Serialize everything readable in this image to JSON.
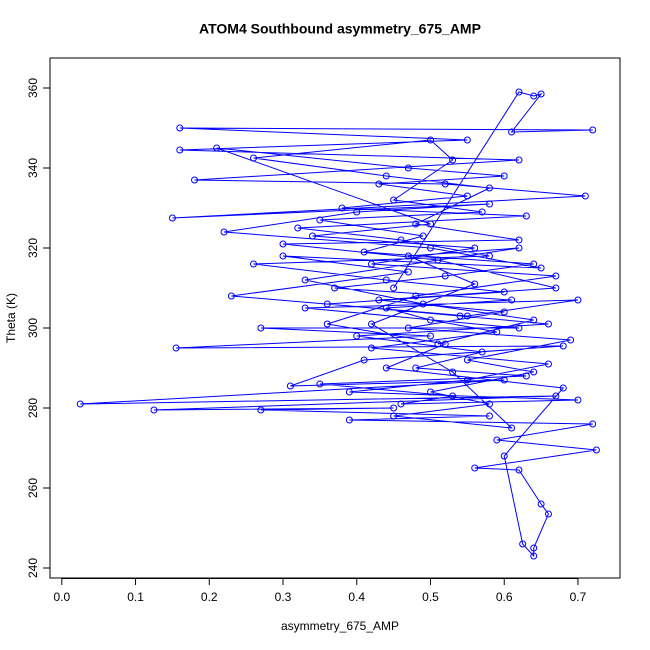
{
  "chart_data": {
    "type": "line",
    "title": "ATOM4 Southbound asymmetry_675_AMP",
    "x_label": "asymmetry_675_AMP",
    "y_label": "Theta (K)",
    "color": "#0000ff",
    "markers": true,
    "x": [
      0.45,
      0.62,
      0.64,
      0.65,
      0.61,
      0.72,
      0.16,
      0.55,
      0.16,
      0.62,
      0.18,
      0.52,
      0.71,
      0.15,
      0.58,
      0.4,
      0.22,
      0.5,
      0.65,
      0.3,
      0.47,
      0.23,
      0.55,
      0.7,
      0.33,
      0.62,
      0.27,
      0.5,
      0.155,
      0.68,
      0.41,
      0.31,
      0.6,
      0.025,
      0.67,
      0.125,
      0.45,
      0.27,
      0.58,
      0.39,
      0.72,
      0.59,
      0.725,
      0.56,
      0.62,
      0.65,
      0.66,
      0.64,
      0.64,
      0.625,
      0.6,
      0.68,
      0.44,
      0.52,
      0.36,
      0.48,
      0.67,
      0.42,
      0.56,
      0.34,
      0.5,
      0.21,
      0.47,
      0.6,
      0.43,
      0.55,
      0.38,
      0.63,
      0.32,
      0.46,
      0.58,
      0.26,
      0.44,
      0.6,
      0.36,
      0.54,
      0.66,
      0.4,
      0.57,
      0.48,
      0.63,
      0.35,
      0.53,
      0.46,
      0.7,
      0.39,
      0.55,
      0.66,
      0.42,
      0.59,
      0.5,
      0.44,
      0.61,
      0.37,
      0.52,
      0.64,
      0.41,
      0.49,
      0.35,
      0.57,
      0.45,
      0.53,
      0.5,
      0.26,
      0.44,
      0.58,
      0.48,
      0.62,
      0.3,
      0.51,
      0.67,
      0.43,
      0.6,
      0.47,
      0.69,
      0.55,
      0.64,
      0.5,
      0.58,
      0.45,
      0.61,
      0.53,
      0.42,
      0.56,
      0.47,
      0.62,
      0.33,
      0.49,
      0.64,
      0.51
    ],
    "values": [
      310,
      359,
      358,
      358.5,
      349,
      349.5,
      350,
      347,
      344.5,
      342,
      337,
      336,
      333,
      327.5,
      331,
      329,
      324,
      320,
      315,
      318,
      314,
      308,
      303,
      307,
      305,
      300,
      300,
      298,
      295,
      295.5,
      292,
      285.5,
      287,
      281,
      283,
      279.5,
      280,
      279.5,
      278,
      277,
      276,
      272,
      269.5,
      265,
      264.5,
      256,
      253.5,
      245,
      243,
      246,
      268,
      285,
      290,
      296,
      301,
      308,
      313,
      316,
      320,
      323,
      326,
      345,
      340,
      338,
      336,
      333,
      330,
      328,
      325,
      322,
      318,
      316,
      312,
      309,
      306,
      303,
      301,
      298,
      294,
      290,
      288,
      286,
      283,
      281,
      282,
      284,
      287,
      291,
      295,
      299,
      302,
      305,
      307,
      310,
      313,
      316,
      319,
      323,
      327,
      329,
      332,
      342,
      347,
      342.5,
      338,
      335,
      326,
      322,
      321,
      317,
      310,
      307,
      304,
      300,
      297,
      292,
      289,
      284,
      281,
      278,
      275,
      289,
      301,
      311,
      318,
      320,
      312,
      306,
      302,
      296
    ],
    "xlim": [
      -0.016,
      0.757
    ],
    "ylim": [
      237.5,
      367.5
    ],
    "xticks": [
      {
        "value": 0,
        "label": "0.0"
      },
      0.1,
      0.2,
      0.3,
      0.4,
      0.5,
      0.6,
      0.7
    ],
    "yticks": [
      240,
      260,
      280,
      300,
      320,
      340,
      360
    ]
  }
}
